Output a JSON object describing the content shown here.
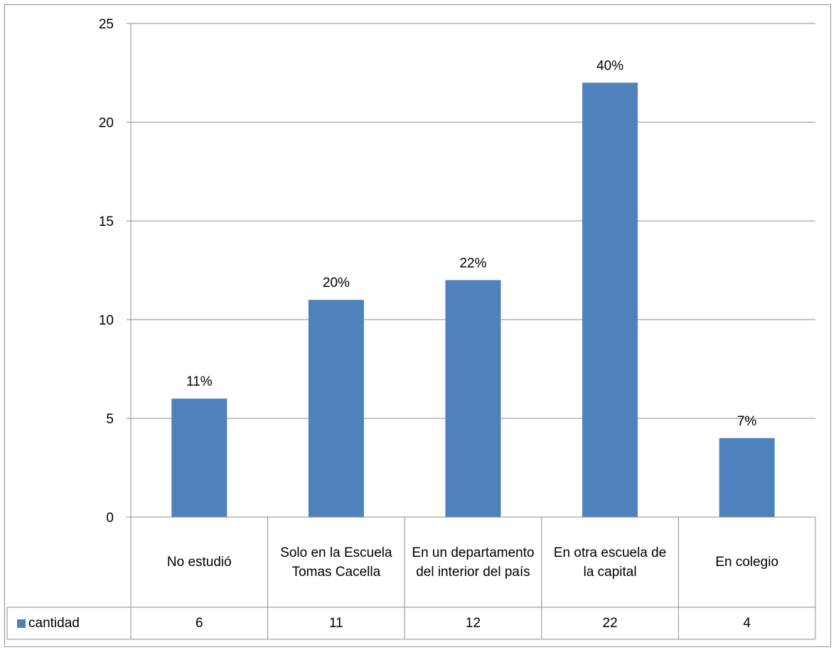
{
  "chart_data": {
    "type": "bar",
    "categories": [
      "No estudió",
      "Solo en la Escuela Tomas Cacella",
      "En un departamento del interior del país",
      "En otra escuela de la capital",
      "En colegio"
    ],
    "series": [
      {
        "name": "cantidad",
        "values": [
          6,
          11,
          12,
          22,
          4
        ],
        "data_labels": [
          "11%",
          "20%",
          "22%",
          "40%",
          "7%"
        ],
        "color": "#4f81bd"
      }
    ],
    "yticks": [
      "0",
      "5",
      "10",
      "15",
      "20",
      "25"
    ],
    "ylim": [
      0,
      25
    ],
    "grid": true,
    "legend": "data-table-left",
    "data_table": true
  }
}
